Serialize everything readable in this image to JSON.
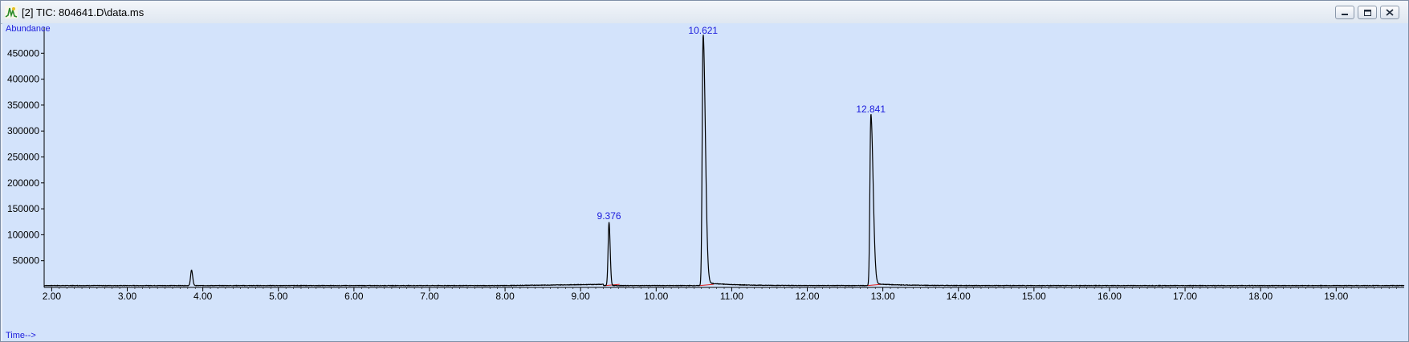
{
  "window": {
    "title": "[2] TIC: 804641.D\\data.ms",
    "icons": {
      "app": "chromatogram-app-icon",
      "minimize": "minimize-icon",
      "maximize": "maximize-icon",
      "close": "close-icon"
    }
  },
  "chart_data": {
    "type": "line",
    "title": "",
    "ylabel": "Abundance",
    "xlabel": "Time-->",
    "xlim": [
      1.9,
      19.9
    ],
    "ylim": [
      0,
      500000
    ],
    "xticks": [
      "2.00",
      "3.00",
      "4.00",
      "5.00",
      "6.00",
      "7.00",
      "8.00",
      "9.00",
      "10.00",
      "11.00",
      "12.00",
      "13.00",
      "14.00",
      "15.00",
      "16.00",
      "17.00",
      "18.00",
      "19.00"
    ],
    "yticks": [
      "50000",
      "100000",
      "150000",
      "200000",
      "250000",
      "300000",
      "350000",
      "400000",
      "450000"
    ],
    "grid": false,
    "line_color": "#000000",
    "baseline_color": "#e02020",
    "label_color": "#1a1adc",
    "baseline_level": 2000,
    "peaks": [
      {
        "rt": 3.85,
        "height": 30000,
        "label": ""
      },
      {
        "rt": 9.376,
        "height": 122000,
        "label": "9.376"
      },
      {
        "rt": 10.621,
        "height": 480000,
        "label": "10.621"
      },
      {
        "rt": 12.841,
        "height": 328000,
        "label": "12.841"
      }
    ]
  }
}
